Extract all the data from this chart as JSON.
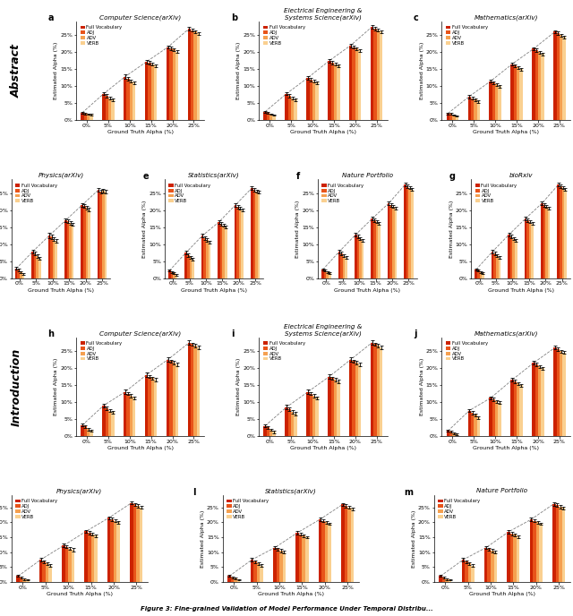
{
  "x_labels": [
    "0%",
    "5%",
    "10%",
    "15%",
    "20%",
    "25%"
  ],
  "colors": [
    "#cc2200",
    "#e8541a",
    "#f5a050",
    "#fad090"
  ],
  "legend_labels": [
    "Full Vocabulary",
    "ADJ",
    "ADV",
    "VERB"
  ],
  "panels": {
    "a": {
      "title": "Computer Science(arXiv)",
      "values": [
        [
          2.2,
          2.0,
          1.8,
          1.6
        ],
        [
          7.8,
          7.2,
          6.5,
          6.0
        ],
        [
          12.8,
          12.2,
          11.5,
          11.0
        ],
        [
          17.2,
          17.0,
          16.5,
          16.0
        ],
        [
          21.5,
          21.2,
          20.8,
          20.2
        ],
        [
          27.0,
          26.5,
          26.0,
          25.5
        ]
      ],
      "errors": [
        [
          0.25,
          0.25,
          0.2,
          0.2
        ],
        [
          0.5,
          0.5,
          0.4,
          0.4
        ],
        [
          0.6,
          0.5,
          0.5,
          0.4
        ],
        [
          0.5,
          0.5,
          0.4,
          0.4
        ],
        [
          0.5,
          0.5,
          0.4,
          0.4
        ],
        [
          0.5,
          0.5,
          0.4,
          0.4
        ]
      ]
    },
    "b": {
      "title": "Electrical Engineering &\nSystems Science(arXiv)",
      "values": [
        [
          2.5,
          2.2,
          1.8,
          1.5
        ],
        [
          7.8,
          7.2,
          6.5,
          6.0
        ],
        [
          12.5,
          12.0,
          11.5,
          11.0
        ],
        [
          17.5,
          17.0,
          16.5,
          16.0
        ],
        [
          22.0,
          21.5,
          21.0,
          20.5
        ],
        [
          27.5,
          27.0,
          26.5,
          26.0
        ]
      ],
      "errors": [
        [
          0.3,
          0.3,
          0.2,
          0.2
        ],
        [
          0.5,
          0.5,
          0.4,
          0.4
        ],
        [
          0.5,
          0.5,
          0.4,
          0.4
        ],
        [
          0.5,
          0.5,
          0.4,
          0.4
        ],
        [
          0.5,
          0.5,
          0.4,
          0.4
        ],
        [
          0.5,
          0.5,
          0.4,
          0.4
        ]
      ]
    },
    "c": {
      "title": "Mathematics(arXiv)",
      "values": [
        [
          2.0,
          1.8,
          1.5,
          1.2
        ],
        [
          7.0,
          6.5,
          6.0,
          5.5
        ],
        [
          11.5,
          11.0,
          10.5,
          10.0
        ],
        [
          16.5,
          16.0,
          15.5,
          15.0
        ],
        [
          21.0,
          20.5,
          20.0,
          19.5
        ],
        [
          26.0,
          25.5,
          25.0,
          24.5
        ]
      ],
      "errors": [
        [
          0.25,
          0.25,
          0.2,
          0.2
        ],
        [
          0.5,
          0.5,
          0.4,
          0.4
        ],
        [
          0.5,
          0.5,
          0.4,
          0.4
        ],
        [
          0.5,
          0.5,
          0.4,
          0.4
        ],
        [
          0.5,
          0.5,
          0.4,
          0.4
        ],
        [
          0.5,
          0.5,
          0.4,
          0.4
        ]
      ]
    },
    "d": {
      "title": "Physics(arXiv)",
      "values": [
        [
          2.8,
          2.4,
          1.8,
          1.2
        ],
        [
          7.8,
          7.2,
          6.5,
          5.8
        ],
        [
          12.5,
          12.2,
          11.5,
          11.0
        ],
        [
          17.0,
          16.8,
          16.2,
          15.8
        ],
        [
          21.5,
          21.2,
          20.8,
          20.2
        ],
        [
          26.0,
          25.5,
          25.8,
          25.5
        ]
      ],
      "errors": [
        [
          0.4,
          0.35,
          0.3,
          0.3
        ],
        [
          0.6,
          0.5,
          0.5,
          0.5
        ],
        [
          0.7,
          0.6,
          0.6,
          0.5
        ],
        [
          0.6,
          0.5,
          0.5,
          0.5
        ],
        [
          0.6,
          0.5,
          0.5,
          0.5
        ],
        [
          0.6,
          0.5,
          0.5,
          0.5
        ]
      ]
    },
    "e": {
      "title": "Statistics(arXiv)",
      "values": [
        [
          2.2,
          1.8,
          1.5,
          1.0
        ],
        [
          7.5,
          6.8,
          6.2,
          5.5
        ],
        [
          12.5,
          11.8,
          11.2,
          10.5
        ],
        [
          16.5,
          16.0,
          15.5,
          15.0
        ],
        [
          21.5,
          21.0,
          20.5,
          20.0
        ],
        [
          26.5,
          26.0,
          25.5,
          25.2
        ]
      ],
      "errors": [
        [
          0.3,
          0.3,
          0.25,
          0.25
        ],
        [
          0.5,
          0.5,
          0.4,
          0.4
        ],
        [
          0.6,
          0.5,
          0.5,
          0.4
        ],
        [
          0.5,
          0.5,
          0.4,
          0.4
        ],
        [
          0.5,
          0.5,
          0.4,
          0.4
        ],
        [
          0.5,
          0.5,
          0.4,
          0.4
        ]
      ]
    },
    "f": {
      "title": "Nature Portfolio",
      "values": [
        [
          2.5,
          2.2,
          1.8,
          1.5
        ],
        [
          7.8,
          7.2,
          6.5,
          6.0
        ],
        [
          12.8,
          12.2,
          11.5,
          11.0
        ],
        [
          17.5,
          17.0,
          16.5,
          16.0
        ],
        [
          22.0,
          21.5,
          21.0,
          20.5
        ],
        [
          27.5,
          27.0,
          26.5,
          26.0
        ]
      ],
      "errors": [
        [
          0.3,
          0.3,
          0.2,
          0.2
        ],
        [
          0.5,
          0.5,
          0.4,
          0.4
        ],
        [
          0.5,
          0.5,
          0.4,
          0.4
        ],
        [
          0.5,
          0.5,
          0.4,
          0.4
        ],
        [
          0.5,
          0.5,
          0.4,
          0.4
        ],
        [
          0.5,
          0.5,
          0.4,
          0.4
        ]
      ]
    },
    "g": {
      "title": "bioRxiv",
      "values": [
        [
          2.5,
          2.2,
          1.8,
          1.5
        ],
        [
          7.8,
          7.2,
          6.5,
          6.0
        ],
        [
          12.8,
          12.2,
          11.5,
          11.0
        ],
        [
          17.5,
          17.0,
          16.5,
          16.0
        ],
        [
          22.0,
          21.5,
          21.0,
          20.5
        ],
        [
          27.5,
          27.0,
          26.5,
          26.0
        ]
      ],
      "errors": [
        [
          0.3,
          0.3,
          0.2,
          0.2
        ],
        [
          0.5,
          0.5,
          0.4,
          0.4
        ],
        [
          0.5,
          0.5,
          0.4,
          0.4
        ],
        [
          0.5,
          0.5,
          0.4,
          0.4
        ],
        [
          0.5,
          0.5,
          0.4,
          0.4
        ],
        [
          0.5,
          0.5,
          0.4,
          0.4
        ]
      ]
    },
    "h": {
      "title": "Computer Science(arXiv)",
      "values": [
        [
          3.2,
          2.8,
          2.0,
          1.5
        ],
        [
          9.0,
          8.2,
          7.5,
          7.0
        ],
        [
          13.0,
          12.5,
          11.8,
          11.2
        ],
        [
          18.0,
          17.5,
          17.0,
          16.5
        ],
        [
          22.5,
          22.0,
          21.5,
          21.0
        ],
        [
          27.5,
          27.0,
          26.5,
          26.0
        ]
      ],
      "errors": [
        [
          0.4,
          0.35,
          0.3,
          0.3
        ],
        [
          0.6,
          0.5,
          0.5,
          0.5
        ],
        [
          0.6,
          0.5,
          0.5,
          0.5
        ],
        [
          0.6,
          0.5,
          0.5,
          0.5
        ],
        [
          0.6,
          0.5,
          0.5,
          0.5
        ],
        [
          0.6,
          0.5,
          0.5,
          0.5
        ]
      ]
    },
    "i": {
      "title": "Electrical Engineering &\nSystems Science(arXiv)",
      "values": [
        [
          3.0,
          2.5,
          1.8,
          1.2
        ],
        [
          8.5,
          7.8,
          7.2,
          6.5
        ],
        [
          13.0,
          12.5,
          11.8,
          11.2
        ],
        [
          17.5,
          17.0,
          16.5,
          16.0
        ],
        [
          22.5,
          22.0,
          21.5,
          21.0
        ],
        [
          27.5,
          27.0,
          26.5,
          26.0
        ]
      ],
      "errors": [
        [
          0.4,
          0.35,
          0.3,
          0.3
        ],
        [
          0.6,
          0.5,
          0.5,
          0.5
        ],
        [
          0.6,
          0.5,
          0.5,
          0.5
        ],
        [
          0.6,
          0.5,
          0.5,
          0.5
        ],
        [
          0.6,
          0.5,
          0.5,
          0.5
        ],
        [
          0.6,
          0.5,
          0.5,
          0.5
        ]
      ]
    },
    "j": {
      "title": "Mathematics(arXiv)",
      "values": [
        [
          1.5,
          1.2,
          0.8,
          0.5
        ],
        [
          7.5,
          6.8,
          6.2,
          5.5
        ],
        [
          11.2,
          10.8,
          10.2,
          9.8
        ],
        [
          16.5,
          16.0,
          15.5,
          15.0
        ],
        [
          21.5,
          21.0,
          20.5,
          20.0
        ],
        [
          26.0,
          25.5,
          25.0,
          24.5
        ]
      ],
      "errors": [
        [
          0.3,
          0.25,
          0.2,
          0.2
        ],
        [
          0.5,
          0.5,
          0.4,
          0.4
        ],
        [
          0.5,
          0.5,
          0.4,
          0.4
        ],
        [
          0.5,
          0.5,
          0.4,
          0.4
        ],
        [
          0.5,
          0.5,
          0.4,
          0.4
        ],
        [
          0.5,
          0.5,
          0.4,
          0.4
        ]
      ]
    },
    "k": {
      "title": "Physics(arXiv)",
      "values": [
        [
          2.0,
          1.5,
          1.0,
          0.8
        ],
        [
          7.5,
          6.8,
          6.2,
          5.5
        ],
        [
          12.2,
          11.8,
          11.2,
          10.8
        ],
        [
          17.0,
          16.5,
          16.0,
          15.5
        ],
        [
          21.5,
          21.0,
          20.5,
          20.0
        ],
        [
          26.5,
          26.0,
          25.5,
          25.0
        ]
      ],
      "errors": [
        [
          0.3,
          0.3,
          0.25,
          0.2
        ],
        [
          0.5,
          0.5,
          0.5,
          0.4
        ],
        [
          0.6,
          0.5,
          0.5,
          0.5
        ],
        [
          0.5,
          0.5,
          0.5,
          0.4
        ],
        [
          0.5,
          0.5,
          0.5,
          0.4
        ],
        [
          0.5,
          0.5,
          0.5,
          0.4
        ]
      ]
    },
    "l": {
      "title": "Statistics(arXiv)",
      "values": [
        [
          2.0,
          1.5,
          1.2,
          0.8
        ],
        [
          7.5,
          6.8,
          6.2,
          5.5
        ],
        [
          11.5,
          11.0,
          10.5,
          10.0
        ],
        [
          16.5,
          16.0,
          15.5,
          15.0
        ],
        [
          21.0,
          20.5,
          20.0,
          19.5
        ],
        [
          26.0,
          25.5,
          25.0,
          24.5
        ]
      ],
      "errors": [
        [
          0.3,
          0.3,
          0.25,
          0.2
        ],
        [
          0.5,
          0.5,
          0.4,
          0.4
        ],
        [
          0.5,
          0.5,
          0.5,
          0.4
        ],
        [
          0.5,
          0.5,
          0.4,
          0.4
        ],
        [
          0.5,
          0.5,
          0.4,
          0.4
        ],
        [
          0.5,
          0.5,
          0.4,
          0.4
        ]
      ]
    },
    "m": {
      "title": "Nature Portfolio",
      "values": [
        [
          2.0,
          1.5,
          1.0,
          0.8
        ],
        [
          7.5,
          6.8,
          6.2,
          5.5
        ],
        [
          11.5,
          11.0,
          10.5,
          10.0
        ],
        [
          16.8,
          16.2,
          15.8,
          15.2
        ],
        [
          21.0,
          20.5,
          20.0,
          19.5
        ],
        [
          26.2,
          25.8,
          25.2,
          24.8
        ]
      ],
      "errors": [
        [
          0.3,
          0.3,
          0.25,
          0.2
        ],
        [
          0.5,
          0.5,
          0.4,
          0.4
        ],
        [
          0.5,
          0.5,
          0.5,
          0.4
        ],
        [
          0.5,
          0.5,
          0.4,
          0.4
        ],
        [
          0.5,
          0.5,
          0.4,
          0.4
        ],
        [
          0.6,
          0.5,
          0.5,
          0.4
        ]
      ]
    }
  },
  "ylim": [
    0,
    29
  ],
  "yticks": [
    0,
    5,
    10,
    15,
    20,
    25
  ],
  "ytick_labels": [
    "0%",
    "5%",
    "10%",
    "15%",
    "20%",
    "25%"
  ],
  "row_layout": [
    {
      "panels": [
        "a",
        "b",
        "c"
      ],
      "section_label": "Abstract",
      "ncols": 3
    },
    {
      "panels": [
        "d",
        "e",
        "f",
        "g"
      ],
      "section_label": null,
      "ncols": 4
    },
    {
      "panels": [
        "h",
        "i",
        "j"
      ],
      "section_label": "Introduction",
      "ncols": 3
    },
    {
      "panels": [
        "k",
        "l",
        "m"
      ],
      "section_label": null,
      "ncols": 3
    }
  ],
  "caption": "Figure 3: Fine-grained Validation of Model Performance Under Temporal Distribu..."
}
